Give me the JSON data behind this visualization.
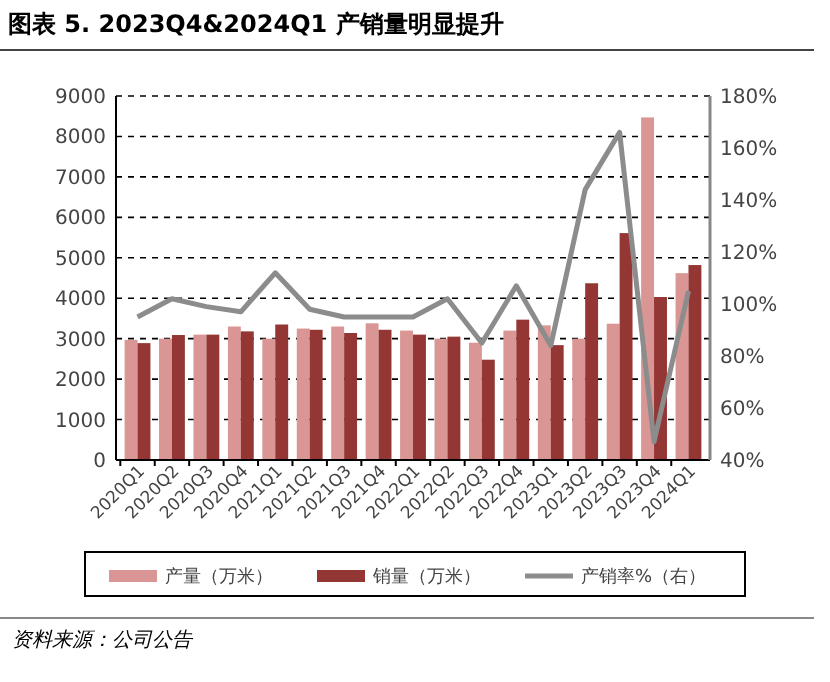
{
  "chart_data": {
    "type": "bar",
    "title": "图表 5. 2023Q4&2024Q1 产销量明显提升",
    "categories": [
      "2020Q1",
      "2020Q2",
      "2020Q3",
      "2020Q4",
      "2021Q1",
      "2021Q2",
      "2021Q3",
      "2021Q4",
      "2022Q1",
      "2022Q2",
      "2022Q3",
      "2022Q4",
      "2023Q1",
      "2023Q2",
      "2023Q3",
      "2023Q4",
      "2024Q1"
    ],
    "series": [
      {
        "name": "产量（万米）",
        "color": "#d99694",
        "values": [
          2970,
          3000,
          3100,
          3300,
          3000,
          3250,
          3300,
          3380,
          3200,
          3000,
          2900,
          3200,
          3330,
          3000,
          3370,
          8470,
          4620
        ]
      },
      {
        "name": "销量（万米）",
        "color": "#943634",
        "values": [
          2890,
          3090,
          3100,
          3180,
          3350,
          3220,
          3140,
          3220,
          3100,
          3050,
          2480,
          3470,
          2840,
          4370,
          5610,
          4030,
          4820
        ]
      },
      {
        "name": "产销率%（右）",
        "type": "line",
        "axis": "y2",
        "color": "#8c8c8c",
        "values": [
          95,
          102,
          99,
          97,
          112,
          98,
          95,
          95,
          95,
          102,
          85,
          107,
          84,
          144,
          166,
          47,
          105
        ]
      }
    ],
    "ylim": [
      0,
      9000
    ],
    "yticks": [
      0,
      1000,
      2000,
      3000,
      4000,
      5000,
      6000,
      7000,
      8000,
      9000
    ],
    "y2lim": [
      40,
      180
    ],
    "y2ticks": [
      {
        "value": 40,
        "label": "40%"
      },
      {
        "value": 60,
        "label": "60%"
      },
      {
        "value": 80,
        "label": "80%"
      },
      {
        "value": 100,
        "label": "100%"
      },
      {
        "value": 120,
        "label": "120%"
      },
      {
        "value": 140,
        "label": "140%"
      },
      {
        "value": 160,
        "label": "160%"
      },
      {
        "value": 180,
        "label": "180%"
      }
    ],
    "grid": "y",
    "legend": "bottom",
    "annotations": [
      "资料来源：公司公告"
    ]
  }
}
